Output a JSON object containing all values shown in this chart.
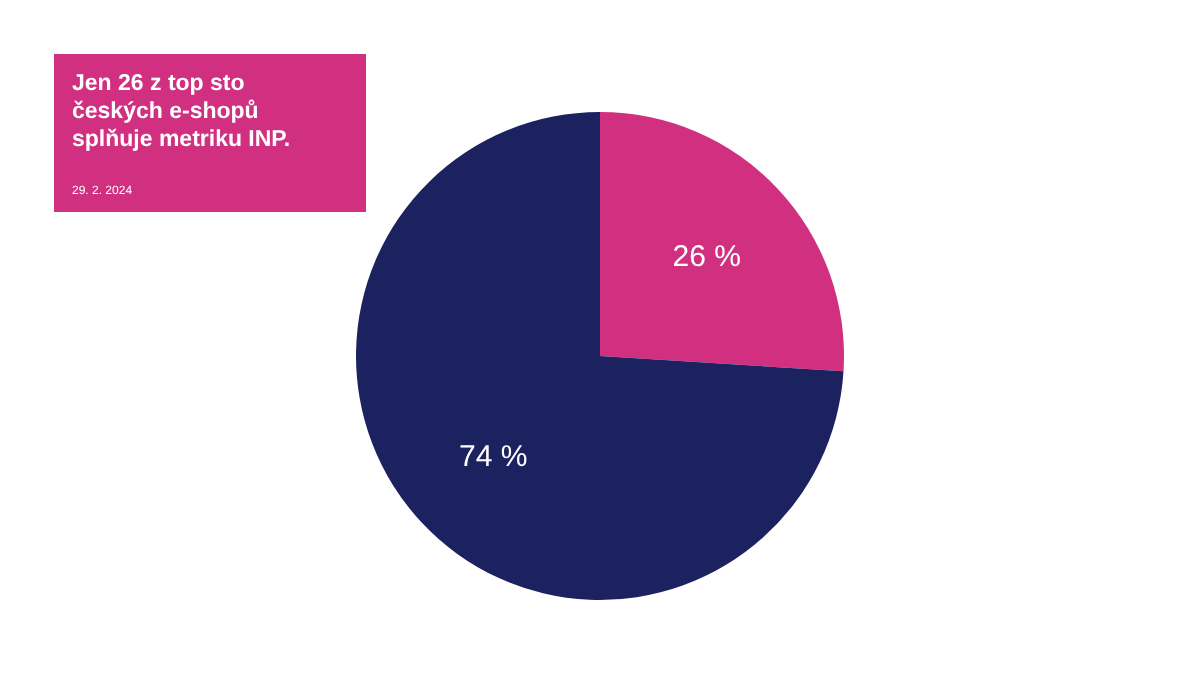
{
  "chart_data": {
    "type": "pie",
    "title": "Jen 26 z top sto českých e-shopů splňuje metriku INP.",
    "subtitle": "29. 2. 2024",
    "categories": [
      null,
      null
    ],
    "values": [
      26,
      74
    ],
    "colors": [
      "#d0307f",
      "#1c2260"
    ],
    "value_labels": [
      "26 %",
      "74 %"
    ]
  }
}
